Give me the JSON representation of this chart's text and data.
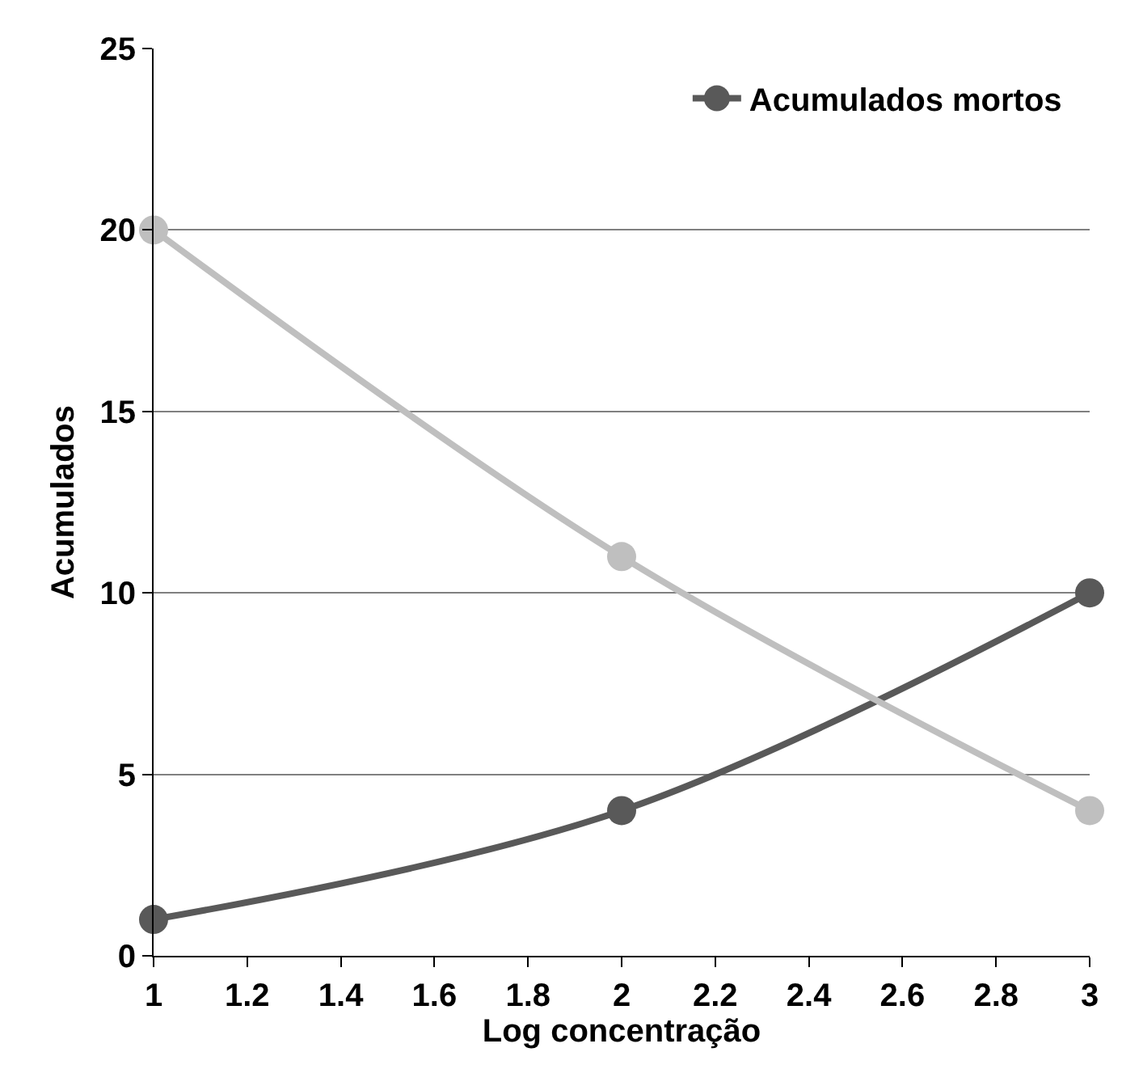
{
  "chart_data": {
    "type": "line",
    "xlabel": "Log concentração",
    "ylabel": "Acumulados",
    "x": [
      1,
      2,
      3
    ],
    "series": [
      {
        "name": "Acumulados mortos",
        "color": "#595959",
        "values": [
          1,
          4,
          10
        ]
      },
      {
        "color": "#bfbfbf",
        "values": [
          20,
          11,
          4
        ]
      }
    ],
    "xlim": [
      1,
      3
    ],
    "xticks": [
      1,
      1.2,
      1.4,
      1.6,
      1.8,
      2,
      2.2,
      2.4,
      2.6,
      2.8,
      3
    ],
    "ylim": [
      0,
      25
    ],
    "yticks": [
      0,
      5,
      10,
      15,
      20,
      25
    ],
    "grid": "y",
    "legend": "top right",
    "marker": "circle"
  }
}
